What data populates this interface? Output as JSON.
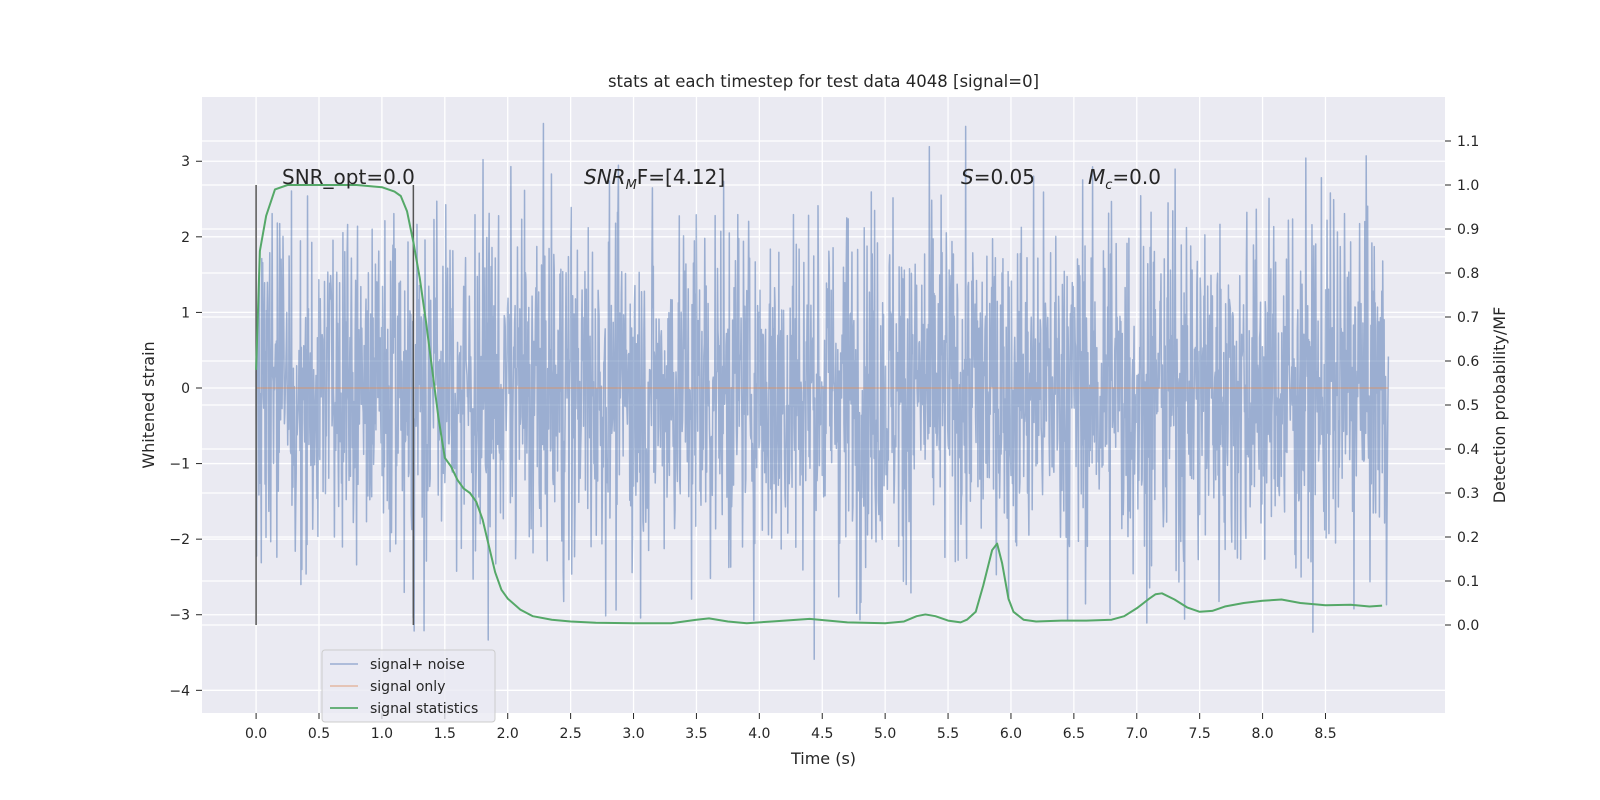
{
  "chart_data": {
    "type": "line",
    "title": "stats at each timestep for test data 4048 [signal=0]",
    "xlabel": "Time (s)",
    "ylabel": "Whitened strain",
    "y2label": "Detection probability/MF",
    "xlim": [
      -0.43,
      9.45
    ],
    "ylim": [
      -4.3,
      3.85
    ],
    "y2lim": [
      -0.2,
      1.2
    ],
    "x_ticks": [
      "0.0",
      "0.5",
      "1.0",
      "1.5",
      "2.0",
      "2.5",
      "3.0",
      "3.5",
      "4.0",
      "4.5",
      "5.0",
      "5.5",
      "6.0",
      "6.5",
      "7.0",
      "7.5",
      "8.0",
      "8.5"
    ],
    "y_ticks": [
      "−4",
      "−3",
      "−2",
      "−1",
      "0",
      "1",
      "2",
      "3"
    ],
    "y2_ticks": [
      "0.0",
      "0.1",
      "0.2",
      "0.3",
      "0.4",
      "0.5",
      "0.6",
      "0.7",
      "0.8",
      "0.9",
      "1.0",
      "1.1"
    ],
    "grid": true,
    "legend_position": "lower-left",
    "annotations": [
      "SNR_opt=0.0",
      "SNR",
      "M",
      "F=[4.12]",
      "S",
      "=0.05",
      "M",
      "c",
      "=0.0"
    ],
    "vlines": [
      0.0,
      1.25
    ],
    "series": [
      {
        "name": "signal+ noise",
        "color": "#4c72b0",
        "description": "whitened noise, approx. uniform band from -1.5 to 1.5 with spikes to about -4.0 and 3.5, t from 0 to 9.0",
        "x_range": [
          0.0,
          9.0
        ]
      },
      {
        "name": "signal only",
        "color": "#dd8452",
        "x": [
          0.0,
          9.0
        ],
        "y": [
          0.0,
          0.0
        ]
      },
      {
        "name": "signal statistics",
        "color": "#55a868",
        "axis": "right",
        "x": [
          0.0,
          0.03,
          0.08,
          0.15,
          0.25,
          0.4,
          0.6,
          0.8,
          1.0,
          1.1,
          1.15,
          1.2,
          1.25,
          1.3,
          1.35,
          1.4,
          1.45,
          1.5,
          1.55,
          1.6,
          1.65,
          1.7,
          1.75,
          1.8,
          1.85,
          1.9,
          1.95,
          2.0,
          2.1,
          2.2,
          2.35,
          2.5,
          2.7,
          3.0,
          3.3,
          3.5,
          3.6,
          3.75,
          3.9,
          4.1,
          4.4,
          4.7,
          5.0,
          5.15,
          5.25,
          5.32,
          5.4,
          5.5,
          5.6,
          5.65,
          5.72,
          5.78,
          5.85,
          5.89,
          5.93,
          5.98,
          6.02,
          6.1,
          6.2,
          6.4,
          6.6,
          6.8,
          6.9,
          7.0,
          7.1,
          7.15,
          7.2,
          7.3,
          7.4,
          7.5,
          7.6,
          7.7,
          7.85,
          8.0,
          8.15,
          8.3,
          8.5,
          8.7,
          8.85,
          8.95
        ],
        "y": [
          0.58,
          0.85,
          0.93,
          0.99,
          1.0,
          1.0,
          1.0,
          1.0,
          0.995,
          0.985,
          0.975,
          0.94,
          0.87,
          0.79,
          0.69,
          0.58,
          0.47,
          0.38,
          0.36,
          0.33,
          0.31,
          0.3,
          0.28,
          0.24,
          0.18,
          0.12,
          0.08,
          0.06,
          0.035,
          0.02,
          0.012,
          0.008,
          0.005,
          0.004,
          0.004,
          0.012,
          0.015,
          0.008,
          0.004,
          0.008,
          0.014,
          0.006,
          0.004,
          0.008,
          0.02,
          0.024,
          0.02,
          0.01,
          0.006,
          0.012,
          0.03,
          0.09,
          0.17,
          0.185,
          0.14,
          0.06,
          0.03,
          0.012,
          0.008,
          0.01,
          0.01,
          0.012,
          0.02,
          0.038,
          0.06,
          0.07,
          0.072,
          0.058,
          0.04,
          0.03,
          0.032,
          0.042,
          0.05,
          0.055,
          0.058,
          0.05,
          0.045,
          0.046,
          0.042,
          0.044
        ]
      }
    ]
  }
}
